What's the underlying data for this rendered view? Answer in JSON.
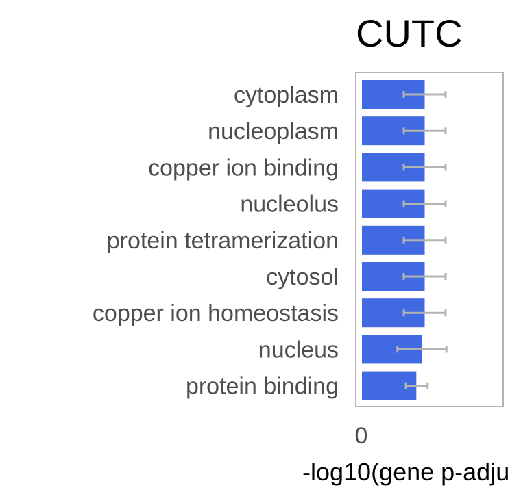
{
  "chart_data": {
    "type": "bar",
    "orientation": "horizontal",
    "title": "CUTC",
    "xlabel": "-log10(gene p-adju",
    "ylabel": "",
    "x_tick_labels": [
      "0"
    ],
    "xlim": [
      0,
      3.4
    ],
    "grid": false,
    "categories": [
      "cytoplasm",
      "nucleoplasm",
      "copper ion binding",
      "nucleolus",
      "protein tetramerization",
      "cytosol",
      "copper ion homeostasis",
      "nucleus",
      "protein binding"
    ],
    "values": [
      1.5,
      1.5,
      1.5,
      1.5,
      1.5,
      1.5,
      1.5,
      1.43,
      1.3
    ],
    "error_low": [
      1.0,
      1.0,
      1.0,
      1.0,
      1.0,
      1.0,
      1.0,
      0.85,
      1.05
    ],
    "error_high": [
      2.0,
      2.0,
      2.0,
      2.0,
      2.0,
      2.0,
      2.0,
      2.02,
      1.57
    ],
    "colors": {
      "bar": "#4169e1",
      "error": "#b3b3b3",
      "frame": "#b3b3b3",
      "label": "#4d4d4d",
      "title": "#000000"
    }
  }
}
